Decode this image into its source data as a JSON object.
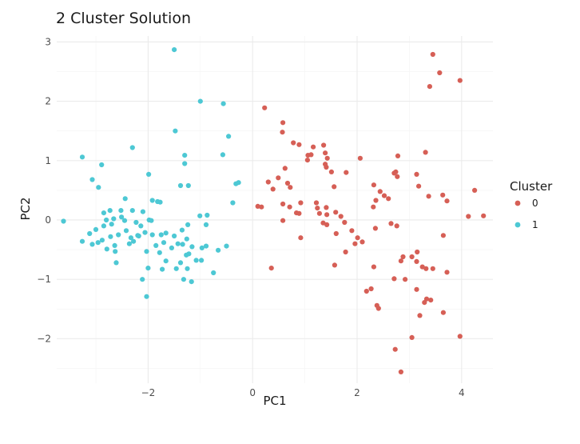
{
  "chart_data": {
    "type": "scatter",
    "title": "2 Cluster Solution",
    "xlabel": "PC1",
    "ylabel": "PC2",
    "xlim": [
      -3.75,
      4.6
    ],
    "ylim": [
      -2.75,
      3.1
    ],
    "x_ticks": [
      -2,
      0,
      2,
      4
    ],
    "x_tick_labels": [
      "−2",
      "0",
      "2",
      "4"
    ],
    "y_ticks": [
      -2,
      -1,
      0,
      1,
      2,
      3
    ],
    "y_tick_labels": [
      "−2",
      "−1",
      "0",
      "1",
      "2",
      "3"
    ],
    "grid": true,
    "legend": {
      "title": "Cluster",
      "placement": "right"
    },
    "series": [
      {
        "name": "0",
        "color": "#d65f56",
        "points": [
          [
            3.45,
            2.79
          ],
          [
            3.58,
            2.48
          ],
          [
            3.39,
            2.25
          ],
          [
            3.97,
            2.35
          ],
          [
            0.23,
            1.89
          ],
          [
            0.58,
            1.64
          ],
          [
            0.57,
            1.48
          ],
          [
            0.78,
            1.3
          ],
          [
            0.89,
            1.27
          ],
          [
            1.16,
            1.23
          ],
          [
            1.06,
            1.09
          ],
          [
            1.12,
            1.1
          ],
          [
            1.05,
            1.01
          ],
          [
            1.36,
            1.26
          ],
          [
            1.39,
            1.13
          ],
          [
            1.43,
            1.04
          ],
          [
            2.06,
            1.04
          ],
          [
            2.78,
            1.08
          ],
          [
            3.31,
            1.14
          ],
          [
            1.39,
            0.94
          ],
          [
            0.62,
            0.87
          ],
          [
            1.41,
            0.89
          ],
          [
            1.51,
            0.81
          ],
          [
            1.56,
            0.56
          ],
          [
            1.79,
            0.8
          ],
          [
            2.74,
            0.81
          ],
          [
            2.71,
            0.79
          ],
          [
            3.14,
            0.77
          ],
          [
            0.3,
            0.64
          ],
          [
            0.49,
            0.71
          ],
          [
            0.67,
            0.62
          ],
          [
            0.72,
            0.55
          ],
          [
            0.39,
            0.52
          ],
          [
            2.32,
            0.59
          ],
          [
            2.44,
            0.48
          ],
          [
            2.52,
            0.41
          ],
          [
            2.77,
            0.73
          ],
          [
            3.18,
            0.57
          ],
          [
            3.37,
            0.4
          ],
          [
            3.64,
            0.42
          ],
          [
            4.25,
            0.5
          ],
          [
            2.36,
            0.33
          ],
          [
            2.6,
            0.36
          ],
          [
            3.72,
            0.32
          ],
          [
            0.1,
            0.23
          ],
          [
            0.17,
            0.22
          ],
          [
            0.58,
            0.27
          ],
          [
            0.71,
            0.22
          ],
          [
            0.84,
            0.12
          ],
          [
            0.92,
            0.29
          ],
          [
            0.89,
            0.11
          ],
          [
            1.22,
            0.29
          ],
          [
            1.24,
            0.2
          ],
          [
            1.28,
            0.11
          ],
          [
            1.42,
            0.09
          ],
          [
            1.41,
            0.21
          ],
          [
            1.59,
            0.13
          ],
          [
            1.69,
            0.06
          ],
          [
            2.31,
            0.22
          ],
          [
            4.13,
            0.06
          ],
          [
            4.42,
            0.07
          ],
          [
            1.35,
            -0.05
          ],
          [
            1.42,
            -0.08
          ],
          [
            1.76,
            -0.04
          ],
          [
            0.58,
            -0.01
          ],
          [
            0.92,
            -0.3
          ],
          [
            1.6,
            -0.23
          ],
          [
            1.9,
            -0.18
          ],
          [
            2.01,
            -0.3
          ],
          [
            2.35,
            -0.14
          ],
          [
            2.65,
            -0.06
          ],
          [
            2.76,
            -0.1
          ],
          [
            3.65,
            -0.26
          ],
          [
            1.96,
            -0.4
          ],
          [
            2.1,
            -0.37
          ],
          [
            1.78,
            -0.54
          ],
          [
            1.57,
            -0.76
          ],
          [
            2.32,
            -0.79
          ],
          [
            3.15,
            -0.54
          ],
          [
            2.84,
            -0.69
          ],
          [
            2.88,
            -0.62
          ],
          [
            3.05,
            -0.62
          ],
          [
            3.14,
            -0.7
          ],
          [
            3.25,
            -0.79
          ],
          [
            3.32,
            -0.82
          ],
          [
            3.45,
            -0.82
          ],
          [
            3.72,
            -0.88
          ],
          [
            0.36,
            -0.81
          ],
          [
            2.71,
            -0.99
          ],
          [
            2.92,
            -1.0
          ],
          [
            2.27,
            -1.16
          ],
          [
            2.18,
            -1.2
          ],
          [
            3.14,
            -1.17
          ],
          [
            3.33,
            -1.33
          ],
          [
            3.41,
            -1.35
          ],
          [
            3.29,
            -1.39
          ],
          [
            2.38,
            -1.44
          ],
          [
            2.41,
            -1.49
          ],
          [
            3.2,
            -1.61
          ],
          [
            3.65,
            -1.56
          ],
          [
            3.05,
            -1.98
          ],
          [
            3.97,
            -1.96
          ],
          [
            2.73,
            -2.18
          ],
          [
            2.84,
            -2.56
          ]
        ]
      },
      {
        "name": "1",
        "color": "#4dc8d4",
        "points": [
          [
            -1.5,
            2.87
          ],
          [
            -1.0,
            2.0
          ],
          [
            -0.56,
            1.96
          ],
          [
            -1.48,
            1.5
          ],
          [
            -0.46,
            1.41
          ],
          [
            -2.3,
            1.22
          ],
          [
            -3.26,
            1.06
          ],
          [
            -1.3,
            1.09
          ],
          [
            -0.57,
            1.1
          ],
          [
            -2.89,
            0.93
          ],
          [
            -1.3,
            0.95
          ],
          [
            -3.07,
            0.68
          ],
          [
            -1.99,
            0.77
          ],
          [
            -2.95,
            0.55
          ],
          [
            -1.38,
            0.58
          ],
          [
            -1.23,
            0.58
          ],
          [
            -0.32,
            0.61
          ],
          [
            -0.27,
            0.63
          ],
          [
            -2.44,
            0.36
          ],
          [
            -1.92,
            0.33
          ],
          [
            -1.82,
            0.31
          ],
          [
            -1.77,
            0.3
          ],
          [
            -0.38,
            0.29
          ],
          [
            -2.73,
            0.16
          ],
          [
            -2.52,
            0.16
          ],
          [
            -2.3,
            0.16
          ],
          [
            -2.85,
            0.12
          ],
          [
            -2.1,
            0.14
          ],
          [
            -1.01,
            0.07
          ],
          [
            -0.87,
            0.08
          ],
          [
            -3.62,
            -0.02
          ],
          [
            -2.8,
            0.0
          ],
          [
            -2.66,
            0.02
          ],
          [
            -2.51,
            0.05
          ],
          [
            -2.45,
            -0.01
          ],
          [
            -1.98,
            0.0
          ],
          [
            -1.94,
            -0.01
          ],
          [
            -1.24,
            -0.08
          ],
          [
            -0.89,
            -0.08
          ],
          [
            -3.0,
            -0.16
          ],
          [
            -2.85,
            -0.1
          ],
          [
            -2.7,
            -0.07
          ],
          [
            -2.42,
            -0.18
          ],
          [
            -2.23,
            -0.04
          ],
          [
            -2.14,
            -0.1
          ],
          [
            -2.06,
            -0.21
          ],
          [
            -1.66,
            -0.22
          ],
          [
            -1.35,
            -0.17
          ],
          [
            -1.26,
            -0.32
          ],
          [
            -3.12,
            -0.23
          ],
          [
            -2.72,
            -0.28
          ],
          [
            -2.57,
            -0.25
          ],
          [
            -2.33,
            -0.3
          ],
          [
            -2.2,
            -0.26
          ],
          [
            -1.92,
            -0.25
          ],
          [
            -1.75,
            -0.25
          ],
          [
            -1.5,
            -0.27
          ],
          [
            -3.26,
            -0.36
          ],
          [
            -3.07,
            -0.41
          ],
          [
            -2.96,
            -0.38
          ],
          [
            -2.88,
            -0.34
          ],
          [
            -2.64,
            -0.43
          ],
          [
            -2.28,
            -0.36
          ],
          [
            -2.36,
            -0.4
          ],
          [
            -1.85,
            -0.43
          ],
          [
            -1.7,
            -0.38
          ],
          [
            -1.55,
            -0.47
          ],
          [
            -1.43,
            -0.4
          ],
          [
            -1.34,
            -0.41
          ],
          [
            -1.16,
            -0.45
          ],
          [
            -0.97,
            -0.47
          ],
          [
            -0.89,
            -0.44
          ],
          [
            -0.5,
            -0.44
          ],
          [
            -2.79,
            -0.49
          ],
          [
            -2.63,
            -0.53
          ],
          [
            -2.03,
            -0.53
          ],
          [
            -1.78,
            -0.55
          ],
          [
            -1.27,
            -0.59
          ],
          [
            -1.22,
            -0.57
          ],
          [
            -0.66,
            -0.51
          ],
          [
            -2.61,
            -0.72
          ],
          [
            -1.66,
            -0.69
          ],
          [
            -1.38,
            -0.72
          ],
          [
            -1.08,
            -0.68
          ],
          [
            -2.0,
            -0.81
          ],
          [
            -1.73,
            -0.83
          ],
          [
            -1.46,
            -0.82
          ],
          [
            -1.25,
            -0.82
          ],
          [
            -0.75,
            -0.89
          ],
          [
            -2.11,
            -1.0
          ],
          [
            -1.32,
            -1.0
          ],
          [
            -1.17,
            -1.04
          ],
          [
            -2.03,
            -1.29
          ],
          [
            -0.98,
            -0.68
          ],
          [
            -2.18,
            -0.27
          ]
        ]
      }
    ]
  }
}
